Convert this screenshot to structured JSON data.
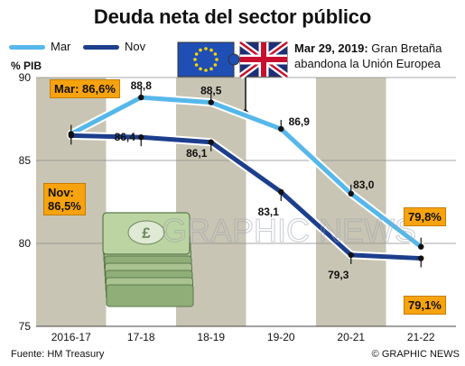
{
  "title": "Deuda neta del sector público",
  "legend": [
    {
      "label": "Mar",
      "color": "#56b7ea"
    },
    {
      "label": "Nov",
      "color": "#1c3e8c"
    }
  ],
  "unit_label": "% PIB",
  "note": {
    "date": "Mar 29, 2019:",
    "text": "Gran Bretaña abandona la Unión Europea"
  },
  "source": "Fuente: HM Treasury",
  "credit": "© GRAPHIC NEWS",
  "watermark": "GRAPHIC NEWS",
  "callouts": {
    "mar_start": "Mar: 86,6%",
    "nov_start_a": "Nov:",
    "nov_start_b": "86,5%",
    "mar_end": "79,8%",
    "nov_end": "79,1%"
  },
  "chart_data": {
    "type": "line",
    "categories": [
      "2016-17",
      "17-18",
      "18-19",
      "19-20",
      "20-21",
      "21-22"
    ],
    "ylim": [
      75,
      90
    ],
    "yticks": [
      75,
      80,
      85,
      90
    ],
    "series": [
      {
        "name": "Mar",
        "color": "#56b7ea",
        "values": [
          86.6,
          88.8,
          88.5,
          86.9,
          83.0,
          79.8
        ],
        "labels": [
          "",
          "88,8",
          "88,5",
          "86,9",
          "83,0",
          ""
        ]
      },
      {
        "name": "Nov",
        "color": "#1c3e8c",
        "values": [
          86.5,
          86.4,
          86.1,
          83.1,
          79.3,
          79.1
        ],
        "labels": [
          "",
          "86,4",
          "86,1",
          "83,1",
          "79,3",
          ""
        ]
      }
    ]
  }
}
